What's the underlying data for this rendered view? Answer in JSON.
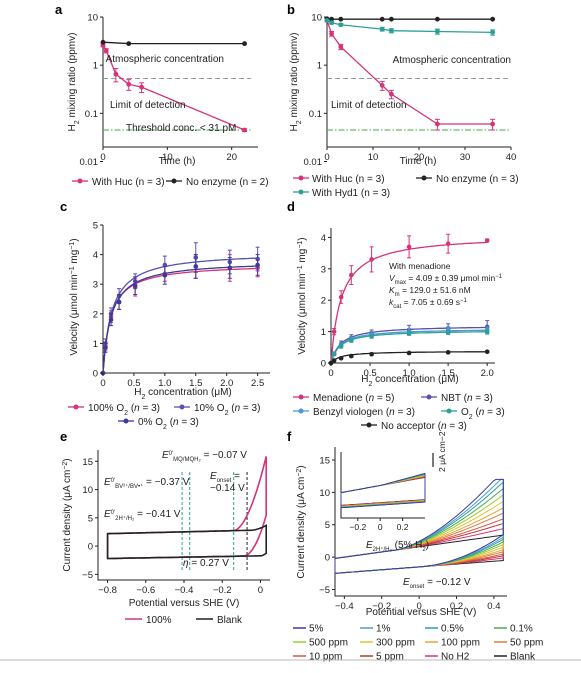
{
  "colors": {
    "pink": "#d6337a",
    "black": "#222222",
    "teal": "#2aa198",
    "purple": "#5a4fb0",
    "blue": "#3c6fb4",
    "grey_dash": "#999999",
    "green_dash": "#45a845"
  },
  "chart_data": [
    {
      "panel": "a",
      "type": "line",
      "xscale": "linear",
      "yscale": "log",
      "xlim": [
        0,
        23
      ],
      "ylim": [
        0.02,
        10
      ],
      "xticks": [
        0,
        10,
        20
      ],
      "yticks": [
        "10",
        "1",
        "0.1",
        "0.01"
      ],
      "xlabel": "Time (h)",
      "ylabel": "H2 mixing ratio (ppmv)",
      "series": [
        {
          "name": "With Huc (n = 3)",
          "color": "#d6337a",
          "x": [
            0,
            0.5,
            2,
            4,
            6,
            22
          ],
          "y": [
            2.6,
            2.0,
            0.65,
            0.4,
            0.35,
            0.045
          ],
          "err": [
            0.2,
            0.2,
            0.2,
            0.1,
            0.08,
            0.003
          ]
        },
        {
          "name": "No enzyme (n = 2)",
          "color": "#222222",
          "x": [
            0,
            4,
            22
          ],
          "y": [
            3.0,
            2.8,
            2.8
          ],
          "err": [
            0,
            0,
            0
          ]
        }
      ],
      "reference_lines": [
        {
          "label": "Atmospheric concentration",
          "y": 0.53,
          "style": "grey-dash"
        },
        {
          "label": "Limit of detection",
          "y": 0.045,
          "style": "green-dashdot"
        }
      ],
      "annotations": [
        "Threshold conc. < 31 pM"
      ],
      "legend": [
        "With Huc (n = 3)",
        "No enzyme (n = 2)"
      ]
    },
    {
      "panel": "b",
      "type": "line",
      "xscale": "linear",
      "yscale": "log",
      "xlim": [
        0,
        40
      ],
      "ylim": [
        0.02,
        10
      ],
      "xticks": [
        0,
        10,
        20,
        30,
        40
      ],
      "yticks": [
        "10",
        "1",
        "0.1",
        "0.01"
      ],
      "xlabel": "Time (h)",
      "ylabel": "H2 mixing ratio (ppmv)",
      "series": [
        {
          "name": "With Huc (n = 3)",
          "color": "#d6337a",
          "x": [
            0,
            1,
            3,
            12,
            14,
            24,
            36
          ],
          "y": [
            8.5,
            4.5,
            2.4,
            0.38,
            0.25,
            0.06,
            0.06
          ],
          "err": [
            0.5,
            0.5,
            0.3,
            0.08,
            0.05,
            0.015,
            0.015
          ]
        },
        {
          "name": "No enzyme (n = 3)",
          "color": "#222222",
          "x": [
            0,
            1,
            3,
            12,
            14,
            24,
            36
          ],
          "y": [
            9.2,
            9.0,
            9.0,
            9.0,
            9.0,
            9.0,
            9.0
          ],
          "err": [
            0,
            0,
            0,
            0,
            0,
            0,
            0
          ]
        },
        {
          "name": "With Hyd1 (n = 3)",
          "color": "#2aa198",
          "x": [
            0,
            1,
            3,
            12,
            14,
            24,
            36
          ],
          "y": [
            8.5,
            7.6,
            6.9,
            5.6,
            5.2,
            5.0,
            4.8
          ],
          "err": [
            0.3,
            0.4,
            0.4,
            0.5,
            0.5,
            0.6,
            0.6
          ]
        }
      ],
      "reference_lines": [
        {
          "label": "Atmospheric concentration",
          "y": 0.53,
          "style": "grey-dash"
        },
        {
          "label": "Limit of detection",
          "y": 0.045,
          "style": "green-dashdot"
        }
      ],
      "legend": [
        "With Huc (n = 3)",
        "No enzyme (n = 3)",
        "With Hyd1 (n = 3)"
      ]
    },
    {
      "panel": "c",
      "type": "scatter",
      "xlim": [
        0,
        2.7
      ],
      "ylim": [
        0,
        5
      ],
      "xticks": [
        "0",
        "0.5",
        "1.0",
        "1.5",
        "2.0",
        "2.5"
      ],
      "yticks": [
        "0",
        "1",
        "2",
        "3",
        "4",
        "5"
      ],
      "xlabel": "H2 concentration (μM)",
      "ylabel": "Velocity (μmol min−1 mg−1)",
      "x": [
        0,
        0.04,
        0.13,
        0.26,
        0.52,
        1.0,
        1.5,
        2.05,
        2.5
      ],
      "series": [
        {
          "name": "100% O2 (n = 3)",
          "color": "#d6337a",
          "y": [
            0,
            0.9,
            1.9,
            2.4,
            2.9,
            3.35,
            3.6,
            3.55,
            3.55
          ],
          "err": [
            0,
            0.15,
            0.2,
            0.25,
            0.3,
            0.25,
            0.4,
            0.45,
            0.3
          ],
          "vmax": 3.7,
          "km": 0.12
        },
        {
          "name": "10% O2 (n = 3)",
          "color": "#5a4fb0",
          "y": [
            0,
            1.0,
            2.0,
            2.6,
            3.1,
            3.65,
            3.9,
            3.75,
            3.85
          ],
          "err": [
            0,
            0.15,
            0.2,
            0.25,
            0.25,
            0.3,
            0.5,
            0.4,
            0.4
          ],
          "vmax": 4.1,
          "km": 0.14
        },
        {
          "name": "0% O2 (n = 3)",
          "color": "#3c3a98",
          "y": [
            0,
            0.85,
            1.8,
            2.4,
            2.95,
            3.3,
            3.6,
            3.55,
            3.65
          ],
          "err": [
            0,
            0.15,
            0.2,
            0.25,
            0.3,
            0.3,
            0.4,
            0.35,
            0.35
          ],
          "vmax": 3.8,
          "km": 0.13
        }
      ],
      "legend": [
        "100% O2 (n = 3)",
        "10% O2 (n = 3)",
        "0% O2 (n = 3)"
      ]
    },
    {
      "panel": "d",
      "type": "scatter",
      "xlim": [
        0,
        2.1
      ],
      "ylim": [
        0,
        4.3
      ],
      "xticks": [
        "0",
        "0.5",
        "1.0",
        "1.5",
        "2.0"
      ],
      "yticks": [
        "0",
        "1",
        "2",
        "3",
        "4"
      ],
      "xlabel": "H2 concentration (μM)",
      "ylabel": "Velocity (μmol min−1 mg−1)",
      "x": [
        0,
        0.04,
        0.13,
        0.26,
        0.52,
        1.0,
        1.5,
        2.0
      ],
      "series": [
        {
          "name": "Menadione (n = 5)",
          "color": "#d6337a",
          "y": [
            0,
            1.0,
            2.1,
            2.8,
            3.3,
            3.7,
            3.8,
            3.9
          ],
          "err": [
            0,
            0.1,
            0.2,
            0.3,
            0.4,
            0.35,
            0.3,
            0.05
          ],
          "vmax": 4.09,
          "km": 0.129
        },
        {
          "name": "NBT (n = 3)",
          "color": "#5a4fb0",
          "y": [
            0,
            0.3,
            0.6,
            0.8,
            0.95,
            1.05,
            1.1,
            1.15
          ],
          "err": [
            0,
            0.05,
            0.1,
            0.1,
            0.1,
            0.15,
            0.15,
            0.2
          ],
          "vmax": 1.2,
          "km": 0.12
        },
        {
          "name": "Benzyl viologen (n = 3)",
          "color": "#4a9bd8",
          "y": [
            0,
            0.3,
            0.55,
            0.75,
            0.9,
            1.0,
            1.05,
            1.05
          ],
          "err": [
            0,
            0.05,
            0.08,
            0.08,
            0.1,
            0.1,
            0.1,
            0.1
          ],
          "vmax": 1.1,
          "km": 0.11
        },
        {
          "name": "O2 (n = 3)",
          "color": "#2aa198",
          "y": [
            0,
            0.28,
            0.55,
            0.72,
            0.85,
            0.95,
            0.98,
            1.0
          ],
          "err": [
            0,
            0.04,
            0.05,
            0.06,
            0.06,
            0.07,
            0.07,
            0.08
          ],
          "vmax": 1.05,
          "km": 0.11
        },
        {
          "name": "No acceptor (n = 3)",
          "color": "#222222",
          "y": [
            0,
            0.08,
            0.15,
            0.22,
            0.28,
            0.32,
            0.34,
            0.36
          ],
          "err": [
            0,
            0.02,
            0.02,
            0.03,
            0.03,
            0.03,
            0.03,
            0.03
          ],
          "vmax": 0.38,
          "km": 0.12
        }
      ],
      "annotations": [
        "With menadione",
        "Vmax = 4.09 ± 0.39 μmol min−1",
        "Km = 129.0 ± 51.6 nM",
        "kcat = 7.05 ± 0.69 s−1"
      ],
      "legend": [
        "Menadione (n = 5)",
        "NBT (n = 3)",
        "Benzyl viologen (n = 3)",
        "O2 (n = 3)",
        "No acceptor (n = 3)"
      ]
    },
    {
      "panel": "e",
      "type": "line",
      "xlim": [
        -0.85,
        0.05
      ],
      "ylim": [
        -6,
        17
      ],
      "xticks": [
        "−0.8",
        "−0.6",
        "−0.4",
        "−0.2",
        "0"
      ],
      "yticks": [
        "−5",
        "0",
        "5",
        "10",
        "15"
      ],
      "xlabel": "Potential versus SHE (V)",
      "ylabel": "Current density (μA cm−2)",
      "vlines": [
        -0.41,
        -0.37,
        -0.14,
        -0.07
      ],
      "annotations": [
        "E0′MQ/MQH2 = −0.07 V",
        "E0′BV2+/BV•+ = −0.37 V",
        "Eonset = −0.14 V",
        "E0′2H+/H2 = −0.41 V",
        "η = 0.27 V"
      ],
      "series": [
        {
          "name": "100%",
          "color": "#d6337a"
        },
        {
          "name": "Blank",
          "color": "#222222"
        }
      ],
      "legend": [
        "100%",
        "Blank"
      ]
    },
    {
      "panel": "f",
      "type": "line",
      "xlim": [
        -0.45,
        0.47
      ],
      "ylim": [
        -6,
        17
      ],
      "xticks": [
        "−0.4",
        "−0.2",
        "0",
        "0.2",
        "0.4"
      ],
      "yticks": [
        "−5",
        "0",
        "5",
        "10",
        "15"
      ],
      "xlabel": "Potential versus SHE (V)",
      "ylabel": "Current density (μA cm−2)",
      "inset_xticks": [
        "−0.2",
        "0",
        "0.2"
      ],
      "inset_scalebar": "2 μA cm−2",
      "annotations": [
        "E2H+/H2 (5% H2)",
        "Eonset = −0.12 V"
      ],
      "series": [
        {
          "name": "5%",
          "color": "#3c3a98",
          "scale": 1.0
        },
        {
          "name": "1%",
          "color": "#4a9bd8",
          "scale": 0.9
        },
        {
          "name": "0.5%",
          "color": "#2aa198",
          "scale": 0.82
        },
        {
          "name": "0.1%",
          "color": "#4cae4c",
          "scale": 0.72
        },
        {
          "name": "500 ppm",
          "color": "#9acd32",
          "scale": 0.62
        },
        {
          "name": "300 ppm",
          "color": "#e6c229",
          "scale": 0.52
        },
        {
          "name": "100 ppm",
          "color": "#e8a33c",
          "scale": 0.42
        },
        {
          "name": "50 ppm",
          "color": "#e07b39",
          "scale": 0.34
        },
        {
          "name": "10 ppm",
          "color": "#d9534f",
          "scale": 0.25
        },
        {
          "name": "5 ppm",
          "color": "#c0392b",
          "scale": 0.18
        },
        {
          "name": "No H2",
          "color": "#d6337a",
          "scale": 0.1
        },
        {
          "name": "Blank",
          "color": "#222222",
          "scale": 0.0
        }
      ],
      "legend": [
        "5%",
        "1%",
        "0.5%",
        "0.1%",
        "500 ppm",
        "300 ppm",
        "100 ppm",
        "50 ppm",
        "10 ppm",
        "5 ppm",
        "No H2",
        "Blank"
      ]
    }
  ]
}
